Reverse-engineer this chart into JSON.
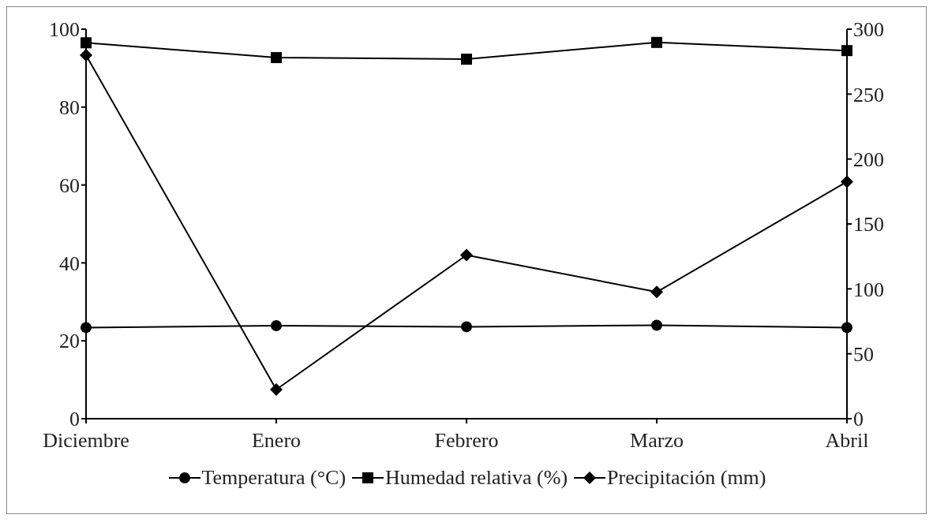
{
  "chart_data": {
    "type": "line",
    "categories": [
      "Diciembre",
      "Enero",
      "Febrero",
      "Marzo",
      "Abril"
    ],
    "series": [
      {
        "name": "Temperatura (°C)",
        "color": "#000000",
        "marker": "circle",
        "values": [
          23.4,
          23.9,
          23.6,
          24,
          23.4
        ]
      },
      {
        "name": "Humedad relativa (%)",
        "color": "#000000",
        "marker": "square",
        "values": [
          96.5,
          92.7,
          92.3,
          96.6,
          94.5
        ]
      },
      {
        "name": "Precipitación (mm)",
        "color": "#000000",
        "marker": "diamond",
        "axis": "y2",
        "values": [
          280,
          22.5,
          126,
          97.6,
          182.5
        ]
      }
    ],
    "ylim": [
      0,
      100
    ],
    "yticks": [
      0,
      20,
      40,
      60,
      80,
      100
    ],
    "y2lim": [
      0,
      300
    ],
    "y2ticks": [
      0,
      50,
      100,
      150,
      200,
      250,
      300
    ],
    "grid": false,
    "legend": "bottom"
  }
}
